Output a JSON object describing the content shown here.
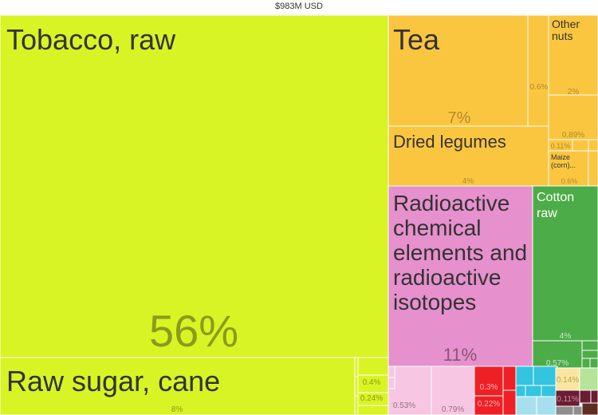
{
  "chart_data": {
    "type": "treemap",
    "title": "$983M USD",
    "colors": {
      "tobacco": "#d8f424",
      "vegetable": "#fbc63f",
      "chemical": "#e690cd",
      "textile": "#4cac47",
      "pink_light": "#f6c6e2",
      "red": "#ee2026",
      "cyan": "#33c4e0",
      "light_blue": "#a6e0ee",
      "light_yellow": "#fbe69f",
      "light_green": "#b6e49a",
      "maroon": "#6b1d33",
      "gray": "#8e8e8e",
      "brown": "#5d2e1f",
      "label_dark": "#333333",
      "label_light": "#ffffff",
      "share_on_green": "#8c9a1c",
      "share_on_orange": "#b08930"
    },
    "labeled": [
      {
        "name": "Tobacco, raw",
        "share": "56%",
        "value": 56,
        "group": "tobacco"
      },
      {
        "name": "Raw sugar, cane",
        "share": "8%",
        "value": 8,
        "group": "tobacco"
      },
      {
        "name": "Tea",
        "share": "7%",
        "value": 7,
        "group": "vegetable"
      },
      {
        "name": "Dried legumes",
        "share": "4%",
        "value": 4,
        "group": "vegetable"
      },
      {
        "name": "Other nuts",
        "share": "2%",
        "value": 2,
        "group": "vegetable"
      },
      {
        "name": "Maize (corn)...",
        "share": "0.6%",
        "value": 0.6,
        "group": "vegetable"
      },
      {
        "name": "Radioactive chemical elements and radioactive isotopes",
        "share": "11%",
        "value": 11,
        "group": "chemical"
      },
      {
        "name": "Cotton raw",
        "share": "4%",
        "value": 4,
        "group": "textile"
      }
    ],
    "unlabeled": [
      {
        "share": "0.6%",
        "value": 0.6,
        "group": "vegetable"
      },
      {
        "share": "0.89%",
        "value": 0.89,
        "group": "vegetable"
      },
      {
        "share": "0.11%",
        "value": 0.11,
        "group": "vegetable"
      },
      {
        "share": "0.4%",
        "value": 0.4,
        "group": "tobacco"
      },
      {
        "share": "0.24%",
        "value": 0.24,
        "group": "tobacco"
      },
      {
        "share": "0.53%",
        "value": 0.53,
        "group": "pink_light"
      },
      {
        "share": "0.79%",
        "value": 0.79,
        "group": "pink_light"
      },
      {
        "share": "0.3%",
        "value": 0.3,
        "group": "red"
      },
      {
        "share": "0.22%",
        "value": 0.22,
        "group": "red"
      },
      {
        "share": "0.57%",
        "value": 0.57,
        "group": "textile"
      },
      {
        "share": "0.14%",
        "value": 0.14,
        "group": "light_yellow"
      },
      {
        "share": "0.11%",
        "value": 0.11,
        "group": "maroon"
      }
    ]
  }
}
